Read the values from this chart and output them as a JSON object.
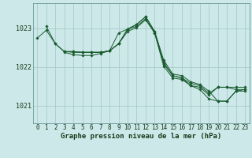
{
  "background_color": "#cce8e8",
  "grid_color": "#aacccc",
  "line_color": "#1a5c30",
  "marker_color": "#1a5c30",
  "xlabel": "Graphe pression niveau de la mer (hPa)",
  "xlabel_fontsize": 6.5,
  "tick_fontsize": 5.5,
  "xlim": [
    -0.5,
    23.5
  ],
  "ylim": [
    1020.55,
    1023.65
  ],
  "yticks": [
    1021,
    1022,
    1023
  ],
  "xticks": [
    0,
    1,
    2,
    3,
    4,
    5,
    6,
    7,
    8,
    9,
    10,
    11,
    12,
    13,
    14,
    15,
    16,
    17,
    18,
    19,
    20,
    21,
    22,
    23
  ],
  "lines": [
    {
      "x": [
        0,
        1,
        2,
        3,
        4,
        5,
        6,
        7,
        8,
        9,
        10,
        11,
        12,
        13,
        14,
        15,
        16,
        17,
        18,
        19,
        20,
        21,
        22,
        23
      ],
      "y": [
        1022.75,
        1022.95,
        1022.6,
        1022.4,
        1022.4,
        1022.38,
        1022.38,
        1022.38,
        1022.42,
        1022.6,
        1022.98,
        1023.1,
        1023.3,
        1022.92,
        1022.18,
        1021.82,
        1021.78,
        1021.62,
        1021.55,
        1021.38,
        1021.12,
        1021.12,
        1021.38,
        1021.42
      ]
    },
    {
      "x": [
        1,
        2,
        3,
        4,
        5,
        6,
        7,
        8,
        9,
        10,
        11,
        12,
        13,
        14,
        15,
        16,
        17,
        18,
        19,
        20,
        21,
        22,
        23
      ],
      "y": [
        1023.05,
        1022.6,
        1022.4,
        1022.4,
        1022.38,
        1022.38,
        1022.38,
        1022.42,
        1022.6,
        1022.98,
        1023.1,
        1023.3,
        1022.92,
        1022.12,
        1021.78,
        1021.72,
        1021.58,
        1021.52,
        1021.32,
        1021.48,
        1021.48,
        1021.48,
        1021.48
      ]
    },
    {
      "x": [
        3,
        4,
        5,
        6,
        7,
        8,
        9,
        10,
        11,
        12,
        13,
        14,
        15,
        16,
        17,
        18,
        19,
        20,
        21,
        22,
        23
      ],
      "y": [
        1022.4,
        1022.38,
        1022.38,
        1022.38,
        1022.38,
        1022.42,
        1022.88,
        1022.98,
        1023.05,
        1023.25,
        1022.88,
        1022.08,
        1021.78,
        1021.72,
        1021.52,
        1021.48,
        1021.28,
        1021.48,
        1021.48,
        1021.42,
        1021.42
      ]
    },
    {
      "x": [
        3,
        4,
        5,
        6,
        7,
        8,
        9,
        10,
        11,
        12,
        13,
        14,
        15,
        16,
        17,
        18,
        19,
        20,
        21,
        22,
        23
      ],
      "y": [
        1022.38,
        1022.32,
        1022.3,
        1022.3,
        1022.35,
        1022.42,
        1022.6,
        1022.92,
        1023.02,
        1023.22,
        1022.88,
        1022.02,
        1021.72,
        1021.68,
        1021.52,
        1021.42,
        1021.18,
        1021.12,
        1021.12,
        1021.38,
        1021.38
      ]
    }
  ]
}
